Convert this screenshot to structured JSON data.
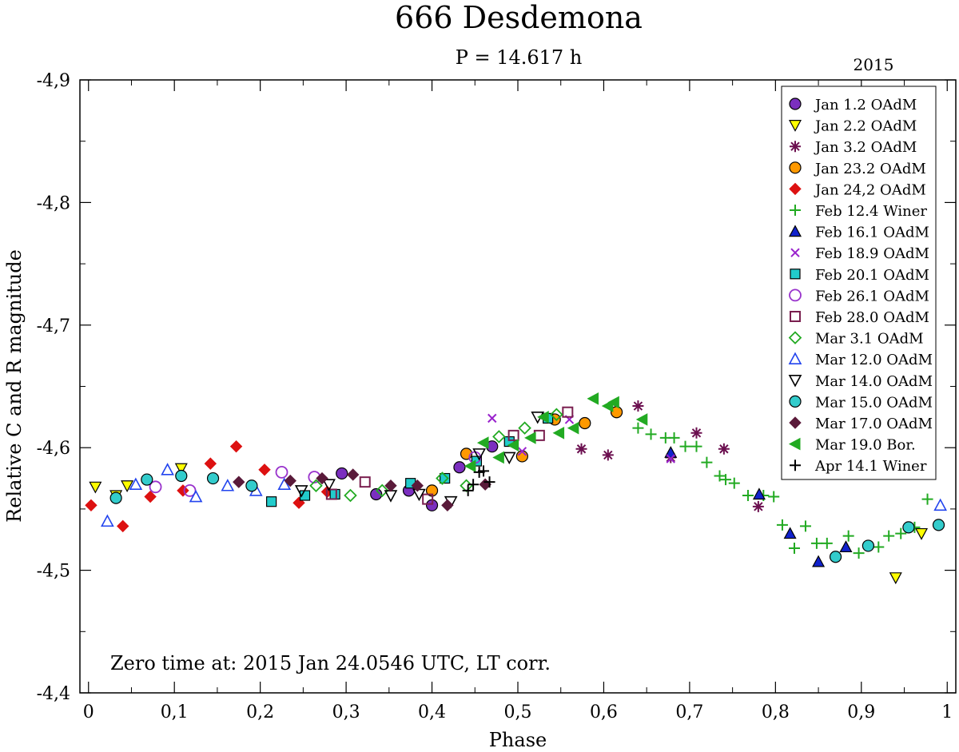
{
  "chart_data": {
    "type": "scatter",
    "title": "666 Desdemona",
    "subtitle": "P = 14.617 h",
    "year_label": "2015",
    "xlabel": "Phase",
    "ylabel": "Relative C and R magnitude",
    "xlim": [
      -0.01,
      1.01
    ],
    "ylim": [
      -4.9,
      -4.4
    ],
    "x_ticks": [
      0,
      0.1,
      0.2,
      0.3,
      0.4,
      0.5,
      0.6,
      0.7,
      0.8,
      0.9,
      1
    ],
    "x_tick_labels": [
      "0",
      "0,1",
      "0,2",
      "0,3",
      "0,4",
      "0,5",
      "0,6",
      "0,7",
      "0,8",
      "0,9",
      "1"
    ],
    "y_ticks": [
      -4.9,
      -4.8,
      -4.7,
      -4.6,
      -4.5,
      -4.4
    ],
    "y_tick_labels": [
      "-4,9",
      "-4,8",
      "-4,7",
      "-4,6",
      "-4,5",
      "-4,4"
    ],
    "annotation": "Zero time at: 2015 Jan 24.0546 UTC, LT corr.",
    "legend_position": "top-right",
    "series": [
      {
        "name": "Jan 1.2 OAdM",
        "marker": "circle",
        "color": "#7b2fbf",
        "filled": true,
        "points": [
          [
            0.295,
            -4.579
          ],
          [
            0.335,
            -4.562
          ],
          [
            0.373,
            -4.565
          ],
          [
            0.4,
            -4.553
          ],
          [
            0.432,
            -4.584
          ],
          [
            0.47,
            -4.601
          ]
        ]
      },
      {
        "name": "Jan 2.2 OAdM",
        "marker": "triangle-down",
        "color": "#ffff00",
        "filled": true,
        "points": [
          [
            0.008,
            -4.568
          ],
          [
            0.032,
            -4.561
          ],
          [
            0.045,
            -4.569
          ],
          [
            0.108,
            -4.583
          ],
          [
            0.94,
            -4.494
          ],
          [
            0.97,
            -4.53
          ]
        ]
      },
      {
        "name": "Jan 3.2 OAdM",
        "marker": "asterisk",
        "color": "#6b0f4f",
        "filled": false,
        "points": [
          [
            0.574,
            -4.599
          ],
          [
            0.605,
            -4.594
          ],
          [
            0.64,
            -4.634
          ],
          [
            0.678,
            -4.592
          ],
          [
            0.708,
            -4.612
          ],
          [
            0.74,
            -4.599
          ],
          [
            0.78,
            -4.552
          ]
        ]
      },
      {
        "name": "Jan 23.2 OAdM",
        "marker": "circle",
        "color": "#ff9900",
        "filled": true,
        "points": [
          [
            0.4,
            -4.565
          ],
          [
            0.44,
            -4.595
          ],
          [
            0.505,
            -4.593
          ],
          [
            0.543,
            -4.623
          ],
          [
            0.578,
            -4.62
          ],
          [
            0.615,
            -4.629
          ]
        ]
      },
      {
        "name": "Jan 24,2 OAdM",
        "marker": "diamond",
        "color": "#dd1111",
        "filled": true,
        "points": [
          [
            0.003,
            -4.553
          ],
          [
            0.04,
            -4.536
          ],
          [
            0.072,
            -4.56
          ],
          [
            0.11,
            -4.565
          ],
          [
            0.142,
            -4.587
          ],
          [
            0.172,
            -4.601
          ],
          [
            0.205,
            -4.582
          ],
          [
            0.245,
            -4.555
          ],
          [
            0.278,
            -4.564
          ]
        ]
      },
      {
        "name": "Feb 12.4 Winer",
        "marker": "plus",
        "color": "#22aa22",
        "filled": false,
        "points": [
          [
            0.64,
            -4.616
          ],
          [
            0.655,
            -4.611
          ],
          [
            0.672,
            -4.608
          ],
          [
            0.682,
            -4.608
          ],
          [
            0.695,
            -4.601
          ],
          [
            0.708,
            -4.601
          ],
          [
            0.72,
            -4.588
          ],
          [
            0.735,
            -4.577
          ],
          [
            0.742,
            -4.574
          ],
          [
            0.752,
            -4.571
          ],
          [
            0.768,
            -4.561
          ],
          [
            0.786,
            -4.561
          ],
          [
            0.798,
            -4.56
          ],
          [
            0.808,
            -4.537
          ],
          [
            0.822,
            -4.518
          ],
          [
            0.835,
            -4.536
          ],
          [
            0.848,
            -4.522
          ],
          [
            0.86,
            -4.522
          ],
          [
            0.885,
            -4.528
          ],
          [
            0.897,
            -4.514
          ],
          [
            0.92,
            -4.519
          ],
          [
            0.932,
            -4.528
          ],
          [
            0.946,
            -4.53
          ],
          [
            0.962,
            -4.535
          ],
          [
            0.977,
            -4.558
          ]
        ]
      },
      {
        "name": "Feb 16.1 OAdM",
        "marker": "triangle-up",
        "color": "#1122cc",
        "filled": true,
        "points": [
          [
            0.678,
            -4.596
          ],
          [
            0.781,
            -4.562
          ],
          [
            0.817,
            -4.53
          ],
          [
            0.85,
            -4.507
          ],
          [
            0.882,
            -4.519
          ]
        ]
      },
      {
        "name": "Feb 18.9 OAdM",
        "marker": "cross",
        "color": "#9922cc",
        "filled": false,
        "points": [
          [
            0.47,
            -4.624
          ],
          [
            0.505,
            -4.597
          ],
          [
            0.56,
            -4.623
          ],
          [
            0.678,
            -4.591
          ]
        ]
      },
      {
        "name": "Feb 20.1 OAdM",
        "marker": "square",
        "color": "#22cccc",
        "filled": true,
        "points": [
          [
            0.213,
            -4.556
          ],
          [
            0.252,
            -4.561
          ],
          [
            0.287,
            -4.562
          ],
          [
            0.375,
            -4.571
          ],
          [
            0.415,
            -4.575
          ],
          [
            0.452,
            -4.589
          ],
          [
            0.49,
            -4.605
          ],
          [
            0.535,
            -4.624
          ]
        ]
      },
      {
        "name": "Feb 26.1 OAdM",
        "marker": "circle",
        "color": "#9933cc",
        "filled": false,
        "points": [
          [
            0.078,
            -4.568
          ],
          [
            0.118,
            -4.565
          ],
          [
            0.225,
            -4.58
          ],
          [
            0.263,
            -4.576
          ],
          [
            0.45,
            -4.592
          ]
        ]
      },
      {
        "name": "Feb 28.0 OAdM",
        "marker": "square",
        "color": "#7a1f4f",
        "filled": false,
        "points": [
          [
            0.283,
            -4.562
          ],
          [
            0.322,
            -4.572
          ],
          [
            0.395,
            -4.558
          ],
          [
            0.495,
            -4.61
          ],
          [
            0.525,
            -4.61
          ],
          [
            0.558,
            -4.629
          ]
        ]
      },
      {
        "name": "Mar 3.1 OAdM",
        "marker": "diamond",
        "color": "#22aa22",
        "filled": false,
        "points": [
          [
            0.265,
            -4.569
          ],
          [
            0.305,
            -4.561
          ],
          [
            0.342,
            -4.565
          ],
          [
            0.412,
            -4.575
          ],
          [
            0.44,
            -4.569
          ],
          [
            0.478,
            -4.609
          ],
          [
            0.508,
            -4.616
          ],
          [
            0.545,
            -4.627
          ]
        ]
      },
      {
        "name": "Mar 12.0 OAdM",
        "marker": "triangle-up",
        "color": "#2244ee",
        "filled": false,
        "points": [
          [
            0.022,
            -4.54
          ],
          [
            0.055,
            -4.57
          ],
          [
            0.092,
            -4.582
          ],
          [
            0.125,
            -4.56
          ],
          [
            0.162,
            -4.569
          ],
          [
            0.195,
            -4.565
          ],
          [
            0.228,
            -4.57
          ],
          [
            0.992,
            -4.553
          ]
        ]
      },
      {
        "name": "Mar 14.0 OAdM",
        "marker": "triangle-down",
        "color": "#000000",
        "filled": false,
        "points": [
          [
            0.248,
            -4.565
          ],
          [
            0.28,
            -4.57
          ],
          [
            0.352,
            -4.561
          ],
          [
            0.385,
            -4.562
          ],
          [
            0.422,
            -4.556
          ],
          [
            0.455,
            -4.595
          ],
          [
            0.49,
            -4.592
          ],
          [
            0.523,
            -4.625
          ]
        ]
      },
      {
        "name": "Mar 15.0 OAdM",
        "marker": "circle",
        "color": "#33cccc",
        "filled": true,
        "points": [
          [
            0.032,
            -4.559
          ],
          [
            0.068,
            -4.574
          ],
          [
            0.108,
            -4.577
          ],
          [
            0.145,
            -4.575
          ],
          [
            0.19,
            -4.569
          ],
          [
            0.87,
            -4.511
          ],
          [
            0.908,
            -4.52
          ],
          [
            0.955,
            -4.535
          ],
          [
            0.99,
            -4.537
          ]
        ]
      },
      {
        "name": "Mar 17.0 OAdM",
        "marker": "diamond",
        "color": "#5a1a3a",
        "filled": true,
        "points": [
          [
            0.175,
            -4.572
          ],
          [
            0.235,
            -4.573
          ],
          [
            0.272,
            -4.575
          ],
          [
            0.308,
            -4.578
          ],
          [
            0.352,
            -4.569
          ],
          [
            0.383,
            -4.569
          ],
          [
            0.418,
            -4.553
          ],
          [
            0.462,
            -4.57
          ]
        ]
      },
      {
        "name": "Mar 19.0 Bor.",
        "marker": "triangle-left",
        "color": "#22aa22",
        "filled": true,
        "points": [
          [
            0.445,
            -4.585
          ],
          [
            0.46,
            -4.604
          ],
          [
            0.478,
            -4.592
          ],
          [
            0.495,
            -4.602
          ],
          [
            0.515,
            -4.608
          ],
          [
            0.53,
            -4.625
          ],
          [
            0.548,
            -4.612
          ],
          [
            0.565,
            -4.616
          ],
          [
            0.588,
            -4.64
          ],
          [
            0.605,
            -4.634
          ],
          [
            0.612,
            -4.637
          ],
          [
            0.645,
            -4.623
          ]
        ]
      },
      {
        "name": "Apr 14.1 Winer",
        "marker": "plus",
        "color": "#000000",
        "filled": false,
        "points": [
          [
            0.442,
            -4.565
          ],
          [
            0.448,
            -4.57
          ],
          [
            0.455,
            -4.58
          ],
          [
            0.46,
            -4.581
          ],
          [
            0.467,
            -4.572
          ]
        ]
      }
    ]
  }
}
